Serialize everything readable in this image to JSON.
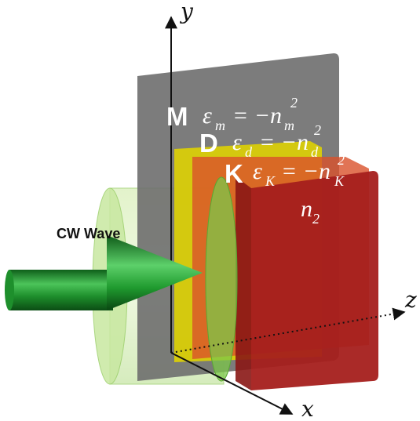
{
  "axes": {
    "y_label": "y",
    "x_label": "x",
    "z_label": "z"
  },
  "layers": {
    "metal": {
      "letter": "M",
      "eq_symbol": "ε",
      "eq_subscript": "m",
      "eq_rhs": "= −n",
      "eq_rhs_subscript": "m",
      "eq_superscript": "2",
      "color": "#6e6e6e"
    },
    "dielectric": {
      "letter": "D",
      "eq_symbol": "ε",
      "eq_subscript": "d",
      "eq_rhs": "= −n",
      "eq_rhs_subscript": "d",
      "eq_superscript": "2",
      "color": "#e0d400"
    },
    "kerr": {
      "letter": "K",
      "eq_symbol": "ε",
      "eq_subscript": "K",
      "eq_rhs": "= −n",
      "eq_rhs_subscript": "K",
      "eq_superscript": "2",
      "color": "#c0352a"
    },
    "substrate": {
      "label": "n",
      "label_subscript": "2",
      "color": "#a51f1c"
    }
  },
  "beam": {
    "label": "CW Wave",
    "color": "#1f8f2c",
    "cylinder_color": "#bfe39a"
  }
}
